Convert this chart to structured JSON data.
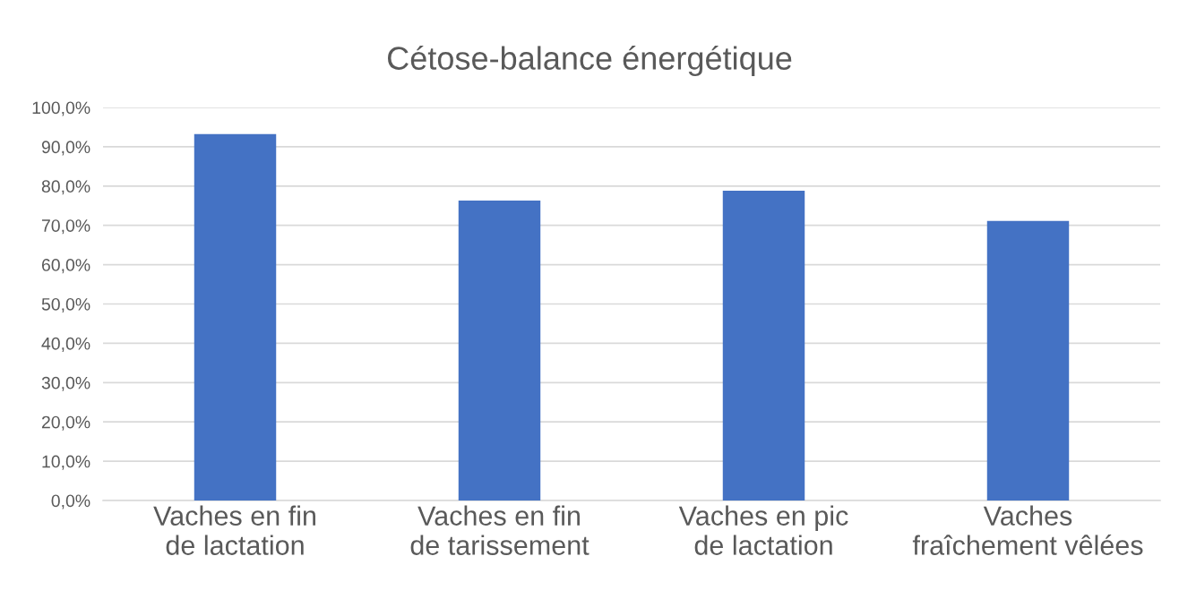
{
  "chart_data": {
    "type": "bar",
    "title": "Cétose-balance énergétique",
    "categories": [
      "Vaches en fin\nde lactation",
      "Vaches en fin\nde tarissement",
      "Vaches en pic\nde lactation",
      "Vaches\nfraîchement vêlées"
    ],
    "values": [
      93.2,
      76.3,
      78.8,
      71.1
    ],
    "color": "#4472c4",
    "ylim": [
      0,
      100
    ],
    "yticks": [
      {
        "value": 0,
        "label": "0,0%"
      },
      {
        "value": 10,
        "label": "10,0%"
      },
      {
        "value": 20,
        "label": "20,0%"
      },
      {
        "value": 30,
        "label": "30,0%"
      },
      {
        "value": 40,
        "label": "40,0%"
      },
      {
        "value": 50,
        "label": "50,0%"
      },
      {
        "value": 60,
        "label": "60,0%"
      },
      {
        "value": 70,
        "label": "70,0%"
      },
      {
        "value": 80,
        "label": "80,0%"
      },
      {
        "value": 90,
        "label": "90,0%"
      },
      {
        "value": 100,
        "label": "100,0%"
      }
    ],
    "grid": "y",
    "legend": false
  }
}
